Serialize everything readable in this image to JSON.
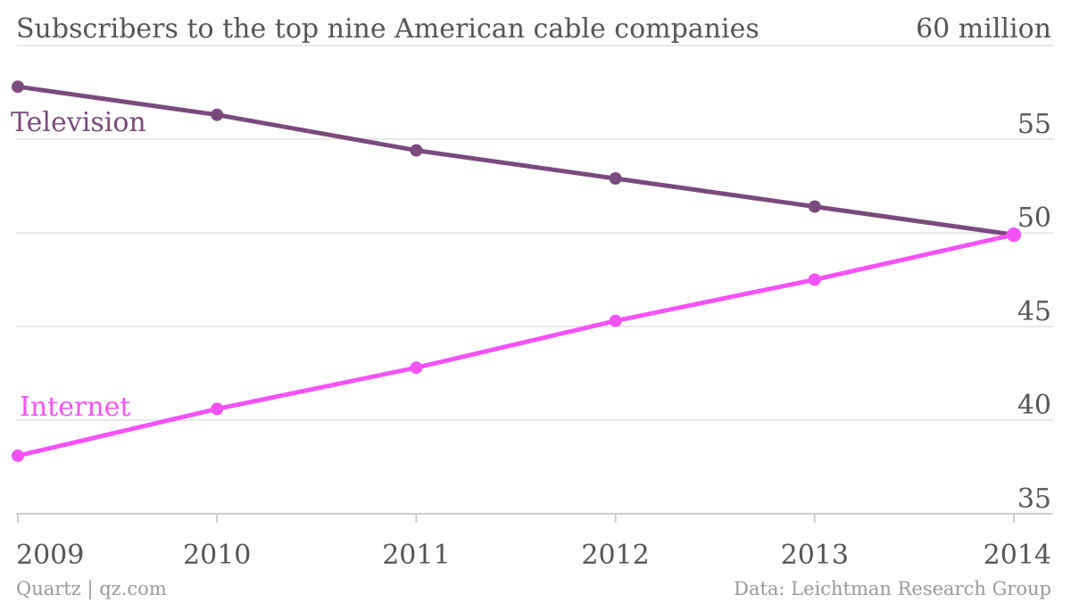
{
  "chart_data": {
    "type": "line",
    "title": "Subscribers to the top nine American cable companies",
    "unit_label": "60 million",
    "x": [
      "2009",
      "2010",
      "2011",
      "2012",
      "2013",
      "2014"
    ],
    "y_ticks": [
      "35",
      "40",
      "45",
      "50",
      "55"
    ],
    "ylim": [
      35,
      60
    ],
    "series": [
      {
        "name": "Television",
        "color": "#7b4a7d",
        "values": [
          57.8,
          56.3,
          54.4,
          52.9,
          51.4,
          49.9
        ]
      },
      {
        "name": "Internet",
        "color": "#f552f5",
        "values": [
          38.1,
          40.6,
          42.8,
          45.3,
          47.5,
          49.9
        ]
      }
    ],
    "grid": true,
    "legend": "inline labels on the left"
  },
  "footer": {
    "source_left": "Quartz | qz.com",
    "source_right": "Data: Leichtman Research Group"
  }
}
